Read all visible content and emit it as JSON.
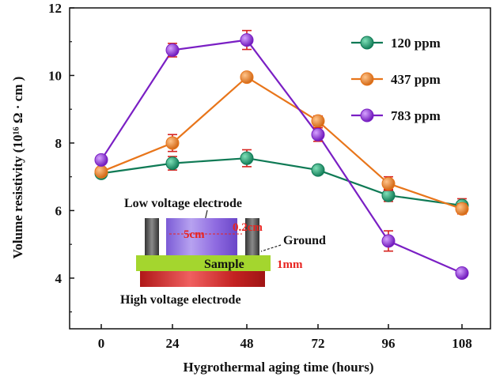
{
  "chart_data": {
    "type": "line",
    "xlabel": "Hygrothermal aging time (hours)",
    "ylabel": "Volume resistivity (10¹⁶ Ω · cm )",
    "x_categories": [
      "0",
      "24",
      "48",
      "72",
      "96",
      "108"
    ],
    "x_ticks": [
      "0",
      "24",
      "48",
      "72",
      "96",
      "108"
    ],
    "y_ticks": [
      "4",
      "6",
      "8",
      "10",
      "12"
    ],
    "ylim": [
      2.5,
      12
    ],
    "series": [
      {
        "name": "120 ppm",
        "color": "#0f7a55",
        "values": [
          7.1,
          7.4,
          7.55,
          7.2,
          6.45,
          6.15
        ],
        "errors": [
          0.1,
          0.2,
          0.25,
          0.12,
          0.18,
          0.2
        ]
      },
      {
        "name": "437 ppm",
        "color": "#e8751a",
        "values": [
          7.15,
          8.0,
          9.95,
          8.65,
          6.8,
          6.05
        ],
        "errors": [
          0.1,
          0.25,
          0.12,
          0.15,
          0.2,
          0.15
        ]
      },
      {
        "name": "783 ppm",
        "color": "#7a1fc4",
        "values": [
          7.5,
          10.75,
          11.05,
          8.25,
          5.1,
          4.15
        ],
        "errors": [
          0.12,
          0.2,
          0.28,
          0.2,
          0.3,
          0.12
        ]
      }
    ],
    "error_bar_color": "#d6221e",
    "legend_position": "top-right",
    "inset": {
      "top_label": "Low voltage electrode",
      "ground_label": "Ground",
      "sample_label": "Sample",
      "bottom_label": "High voltage electrode",
      "dim_label": "1mm",
      "dim_small_1": "5cm",
      "dim_small_2": "0.2cm"
    }
  }
}
